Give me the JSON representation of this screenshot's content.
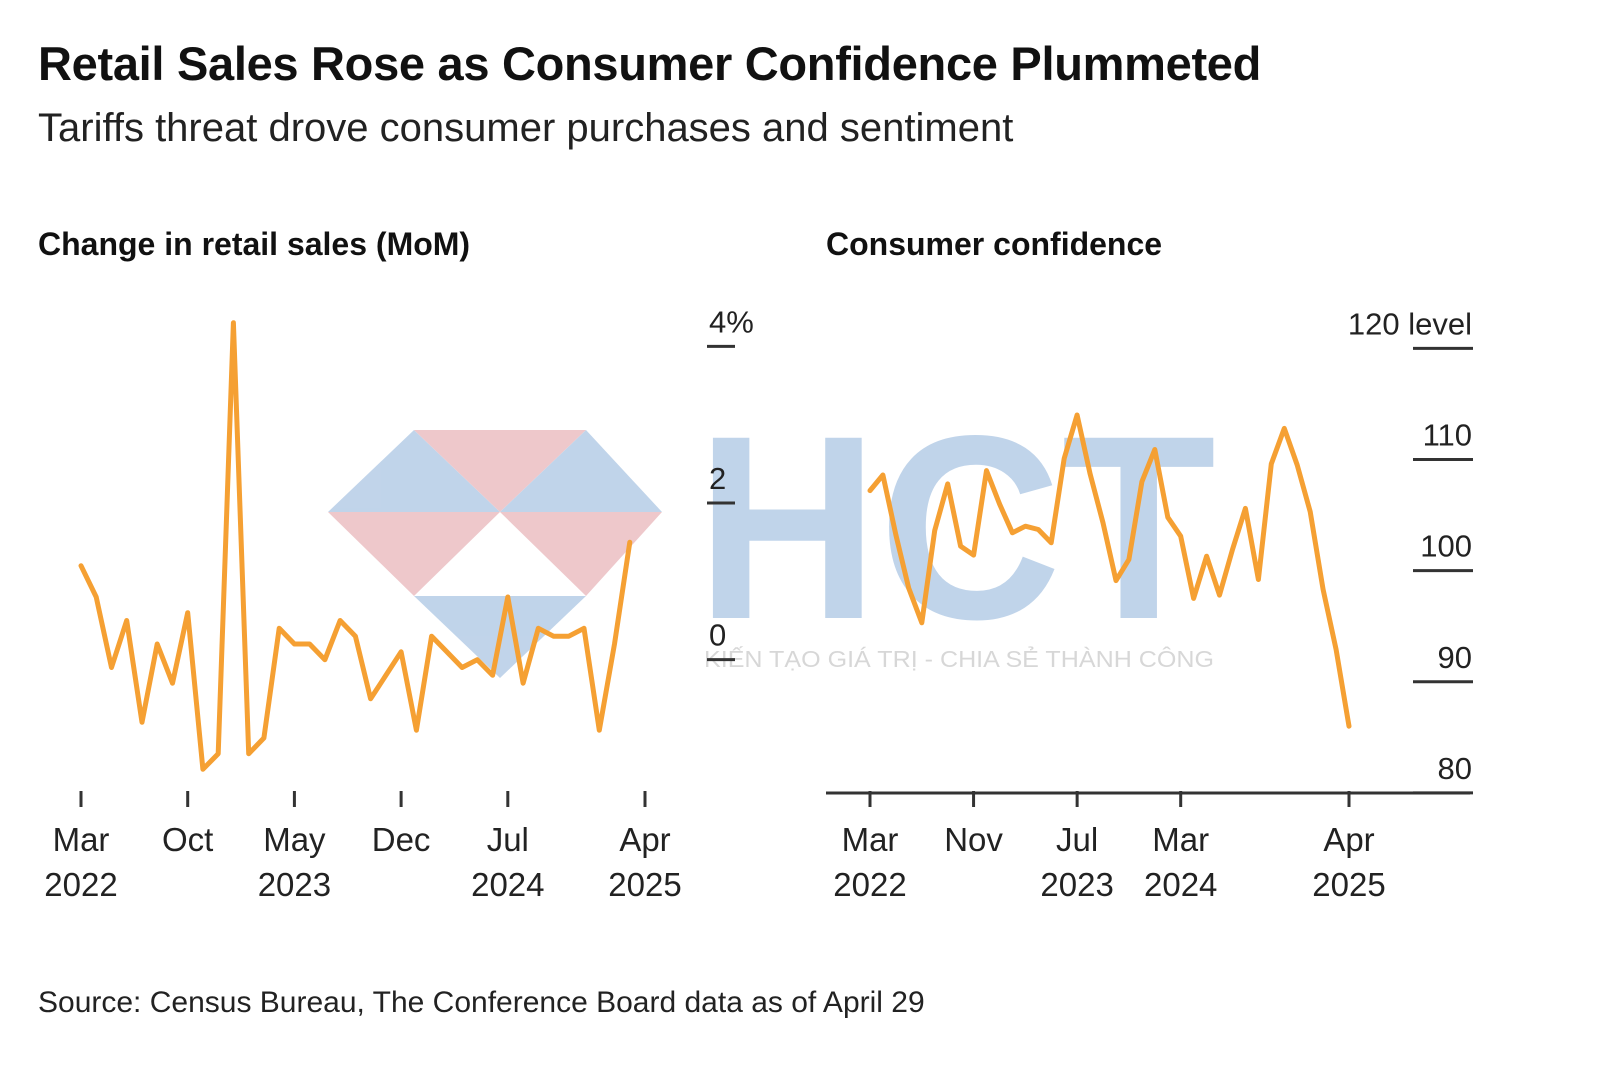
{
  "title": "Retail Sales Rose as Consumer Confidence Plummeted",
  "subtitle": "Tariffs threat drove consumer purchases and sentiment",
  "source": "Source: Census Bureau, The Conference Board data as of April 29",
  "watermark": {
    "logo_text": "HCT",
    "tagline": "KIẾN TẠO GIÁ TRỊ - CHIA SẺ THÀNH CÔNG"
  },
  "colors": {
    "line": "#F5A033",
    "axis": "#333333",
    "watermark_blue": "#A9C4E2",
    "watermark_red": "#E8B4B8"
  },
  "chart_data": [
    {
      "type": "line",
      "title": "Change in retail sales (MoM)",
      "x_ticks": [
        {
          "label": "Mar",
          "year": "2022",
          "date": "2022-03"
        },
        {
          "label": "Oct",
          "year": "",
          "date": "2022-10"
        },
        {
          "label": "May",
          "year": "2023",
          "date": "2023-05"
        },
        {
          "label": "Dec",
          "year": "",
          "date": "2023-12"
        },
        {
          "label": "Jul",
          "year": "2024",
          "date": "2024-07"
        },
        {
          "label": "Apr",
          "year": "2025",
          "date": "2025-04"
        }
      ],
      "y_ticks": [
        "4%",
        "2",
        "0"
      ],
      "y_tick_values": [
        4,
        2,
        0
      ],
      "ylim": [
        -1.6,
        4.4
      ],
      "x": [
        "2022-03",
        "2022-04",
        "2022-05",
        "2022-06",
        "2022-07",
        "2022-08",
        "2022-09",
        "2022-10",
        "2022-11",
        "2022-12",
        "2023-01",
        "2023-02",
        "2023-03",
        "2023-04",
        "2023-05",
        "2023-06",
        "2023-07",
        "2023-08",
        "2023-09",
        "2023-10",
        "2023-11",
        "2023-12",
        "2024-01",
        "2024-02",
        "2024-03",
        "2024-04",
        "2024-05",
        "2024-06",
        "2024-07",
        "2024-08",
        "2024-09",
        "2024-10",
        "2024-11",
        "2024-12",
        "2025-01",
        "2025-02",
        "2025-03"
      ],
      "series": [
        {
          "values": [
            1.2,
            0.8,
            -0.1,
            0.5,
            -0.8,
            0.2,
            -0.3,
            0.6,
            -1.4,
            -1.2,
            4.3,
            -1.2,
            -1.0,
            0.4,
            0.2,
            0.2,
            0.0,
            0.5,
            0.3,
            -0.5,
            -0.2,
            0.1,
            -0.9,
            0.3,
            0.1,
            -0.1,
            0.0,
            -0.2,
            0.8,
            -0.3,
            0.4,
            0.3,
            0.3,
            0.4,
            -0.9,
            0.2,
            1.5
          ]
        }
      ]
    },
    {
      "type": "line",
      "title": "Consumer confidence",
      "x_ticks": [
        {
          "label": "Mar",
          "year": "2022",
          "date": "2022-03"
        },
        {
          "label": "Nov",
          "year": "",
          "date": "2022-11"
        },
        {
          "label": "Jul",
          "year": "2023",
          "date": "2023-07"
        },
        {
          "label": "Mar",
          "year": "2024",
          "date": "2024-03"
        },
        {
          "label": "Apr",
          "year": "2025",
          "date": "2025-04"
        }
      ],
      "y_ticks": [
        "120 level",
        "110",
        "100",
        "90",
        "80"
      ],
      "y_tick_values": [
        120,
        110,
        100,
        90,
        80
      ],
      "ylim": [
        79,
        123
      ],
      "x": [
        "2022-03",
        "2022-04",
        "2022-05",
        "2022-06",
        "2022-07",
        "2022-08",
        "2022-09",
        "2022-10",
        "2022-11",
        "2022-12",
        "2023-01",
        "2023-02",
        "2023-03",
        "2023-04",
        "2023-05",
        "2023-06",
        "2023-07",
        "2023-08",
        "2023-09",
        "2023-10",
        "2023-11",
        "2023-12",
        "2024-01",
        "2024-02",
        "2024-03",
        "2024-04",
        "2024-05",
        "2024-06",
        "2024-07",
        "2024-08",
        "2024-09",
        "2024-10",
        "2024-11",
        "2024-12",
        "2025-01",
        "2025-02",
        "2025-03",
        "2025-04"
      ],
      "series": [
        {
          "values": [
            107.2,
            108.6,
            103.2,
            98.4,
            95.3,
            103.6,
            107.8,
            102.2,
            101.4,
            109.0,
            106.0,
            103.4,
            104.0,
            103.7,
            102.5,
            110.1,
            114.0,
            108.7,
            104.3,
            99.1,
            101.0,
            108.0,
            110.9,
            104.8,
            103.1,
            97.5,
            101.3,
            97.8,
            101.9,
            105.6,
            99.2,
            109.6,
            112.8,
            109.5,
            105.3,
            98.3,
            92.9,
            86.0
          ]
        }
      ]
    }
  ]
}
